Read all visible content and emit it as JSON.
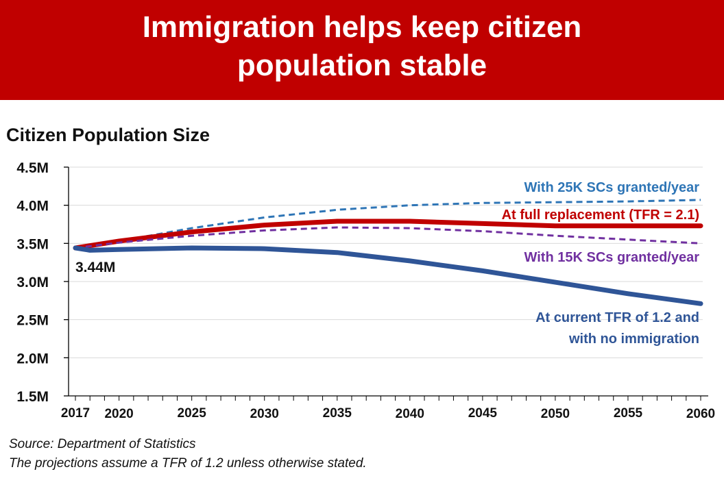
{
  "header": {
    "title_line1": "Immigration helps keep citizen",
    "title_line2": "population stable",
    "background_color": "#c00000"
  },
  "chart_data": {
    "type": "line",
    "title": "Citizen Population Size",
    "xlim": [
      2017,
      2060
    ],
    "ylim": [
      1.5,
      4.5
    ],
    "x_ticks": [
      2017,
      2020,
      2025,
      2030,
      2035,
      2040,
      2045,
      2050,
      2055,
      2060
    ],
    "x_tick_labels": [
      "2017",
      "2020",
      "2025",
      "2030",
      "2035",
      "2040",
      "2045",
      "2050",
      "2055",
      "2060"
    ],
    "y_ticks": [
      1.5,
      2.0,
      2.5,
      3.0,
      3.5,
      4.0,
      4.5
    ],
    "y_tick_labels": [
      "1.5M",
      "2.0M",
      "2.5M",
      "3.0M",
      "3.5M",
      "4.0M",
      "4.5M"
    ],
    "grid": true,
    "start_annotation": "3.44M",
    "series": [
      {
        "name": "With 25K SCs granted/year",
        "color": "#2e75b6",
        "style": "dashed",
        "x": [
          2017,
          2020,
          2025,
          2030,
          2035,
          2040,
          2045,
          2050,
          2055,
          2060
        ],
        "values": [
          3.44,
          3.53,
          3.7,
          3.84,
          3.94,
          4.0,
          4.03,
          4.04,
          4.05,
          4.07
        ]
      },
      {
        "name": "At full replacement (TFR = 2.1)",
        "color": "#c00000",
        "style": "thick",
        "x": [
          2017,
          2020,
          2025,
          2030,
          2035,
          2040,
          2045,
          2050,
          2055,
          2060
        ],
        "values": [
          3.44,
          3.53,
          3.65,
          3.74,
          3.79,
          3.79,
          3.76,
          3.73,
          3.73,
          3.73
        ]
      },
      {
        "name": "With 15K SCs granted/year",
        "color": "#7030a0",
        "style": "dashed",
        "x": [
          2017,
          2020,
          2025,
          2030,
          2035,
          2040,
          2045,
          2050,
          2055,
          2060
        ],
        "values": [
          3.44,
          3.51,
          3.6,
          3.67,
          3.71,
          3.7,
          3.66,
          3.6,
          3.55,
          3.5
        ]
      },
      {
        "name": "At current TFR of 1.2 and with no immigration",
        "name_line1": "At current TFR of 1.2 and",
        "name_line2": "with no immigration",
        "color": "#2f5597",
        "style": "thick",
        "x": [
          2017,
          2018,
          2020,
          2025,
          2030,
          2035,
          2040,
          2045,
          2050,
          2055,
          2060
        ],
        "values": [
          3.44,
          3.41,
          3.42,
          3.44,
          3.43,
          3.38,
          3.27,
          3.14,
          2.99,
          2.84,
          2.71
        ]
      }
    ]
  },
  "footer": {
    "source": "Source: Department of Statistics",
    "note": "The projections assume a TFR of 1.2 unless otherwise stated."
  }
}
